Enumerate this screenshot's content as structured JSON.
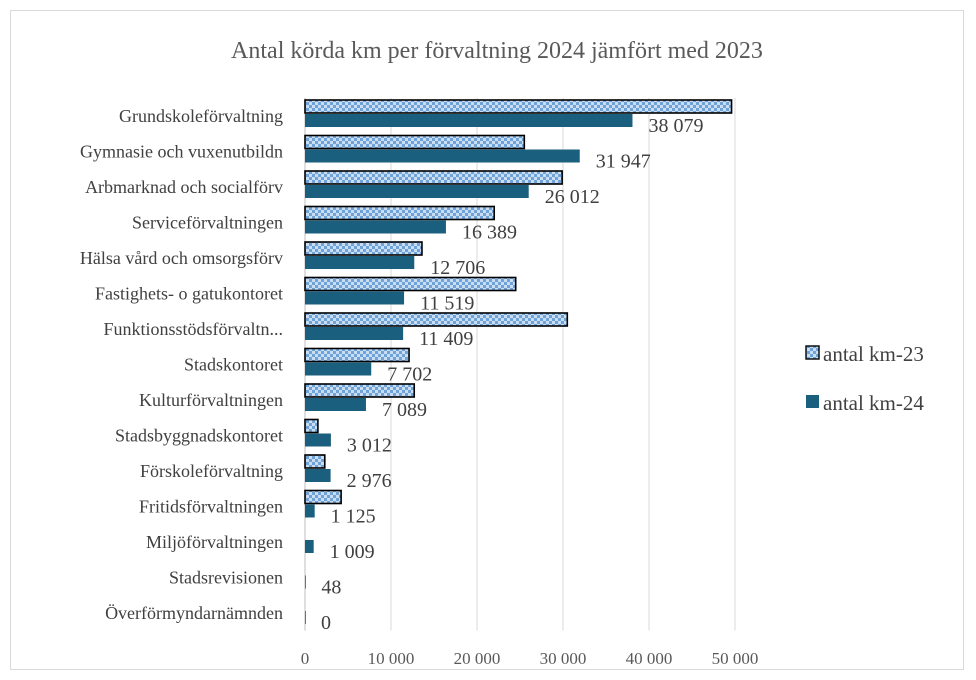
{
  "chart_data": {
    "type": "bar",
    "orientation": "horizontal",
    "title": "Antal körda km per förvaltning 2024 jämfört med 2023",
    "categories": [
      "Grundskoleförvaltning",
      "Gymnasie och vuxenutbildn",
      "Arbmarknad och socialförv",
      "Serviceförvaltningen",
      "Hälsa vård och omsorgsförv",
      "Fastighets- o gatukontoret",
      "Funktionsstödsförvaltn...",
      "Stadskontoret",
      "Kulturförvaltningen",
      "Stadsbyggnadskontoret",
      "Förskoleförvaltning",
      "Fritidsförvaltningen",
      "Miljöförvaltningen",
      "Stadsrevisionen",
      "Överförmyndarnämnden"
    ],
    "series": [
      {
        "name": "antal km-23",
        "color": "#9dc3e6",
        "pattern": "checker",
        "values": [
          49600,
          25500,
          29900,
          22000,
          13600,
          24500,
          30500,
          12100,
          12700,
          1500,
          2300,
          4200,
          0,
          0,
          0
        ]
      },
      {
        "name": "antal km-24",
        "color": "#1b5f7e",
        "values": [
          38079,
          31947,
          26012,
          16389,
          12706,
          11519,
          11409,
          7702,
          7089,
          3012,
          2976,
          1125,
          1009,
          48,
          0
        ]
      }
    ],
    "data_labels": [
      "38 079",
      "31 947",
      "26 012",
      "16 389",
      "12 706",
      "11 519",
      "11 409",
      "7 702",
      "7 089",
      "3 012",
      "2 976",
      "1 125",
      "1 009",
      "48",
      "0"
    ],
    "xlim": [
      0,
      50000
    ],
    "xticks": [
      "0",
      "10 000",
      "20 000",
      "30 000",
      "40 000",
      "50 000"
    ],
    "xlabel": "",
    "ylabel": "",
    "grid": "vertical",
    "legend": "right"
  }
}
